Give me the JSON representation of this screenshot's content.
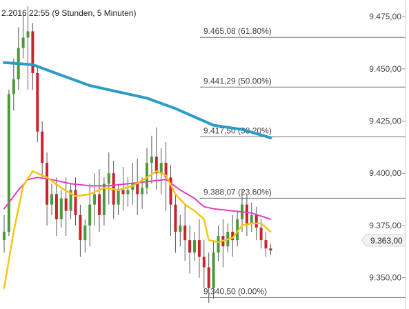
{
  "chart_data": {
    "type": "candlestick",
    "title": "2.2016 22:55 (9 Stunden, 5 Minuten)",
    "ylim": [
      9335,
      9483
    ],
    "y_ticks": [
      {
        "value": 9475,
        "label": "9.475,00"
      },
      {
        "value": 9450,
        "label": "9.450,00"
      },
      {
        "value": 9425,
        "label": "9.425,00"
      },
      {
        "value": 9400,
        "label": "9.400,00"
      },
      {
        "value": 9375,
        "label": "9.375,00"
      },
      {
        "value": 9350,
        "label": "9.350,00"
      }
    ],
    "last_price": {
      "value": 9363,
      "label": "9.363,00"
    },
    "fibonacci": [
      {
        "value": 9465.08,
        "label": "9.465,08 (61.80%)"
      },
      {
        "value": 9441.29,
        "label": "9.441,29 (50.00%)"
      },
      {
        "value": 9417.5,
        "label": "9.417,50 (38.20%)"
      },
      {
        "value": 9388.07,
        "label": "9.388,07 (23.60%)"
      },
      {
        "value": 9340.5,
        "label": "9.340,50 (0.00%)"
      }
    ],
    "candles": [
      [
        9368,
        9380,
        9372,
        9362
      ],
      [
        9372,
        9440,
        9438,
        9370
      ],
      [
        9438,
        9455,
        9445,
        9430
      ],
      [
        9445,
        9470,
        9460,
        9440
      ],
      [
        9460,
        9476,
        9465,
        9455
      ],
      [
        9465,
        9480,
        9468,
        9440
      ],
      [
        9468,
        9472,
        9448,
        9440
      ],
      [
        9448,
        9452,
        9420,
        9415
      ],
      [
        9420,
        9425,
        9405,
        9398
      ],
      [
        9405,
        9410,
        9385,
        9375
      ],
      [
        9385,
        9395,
        9390,
        9380
      ],
      [
        9390,
        9398,
        9378,
        9370
      ],
      [
        9378,
        9392,
        9388,
        9374
      ],
      [
        9388,
        9398,
        9382,
        9370
      ],
      [
        9382,
        9395,
        9392,
        9378
      ],
      [
        9392,
        9398,
        9380,
        9375
      ],
      [
        9380,
        9385,
        9368,
        9360
      ],
      [
        9368,
        9378,
        9375,
        9362
      ],
      [
        9375,
        9395,
        9385,
        9365
      ],
      [
        9385,
        9400,
        9390,
        9375
      ],
      [
        9390,
        9402,
        9380,
        9372
      ],
      [
        9380,
        9398,
        9395,
        9375
      ],
      [
        9395,
        9410,
        9400,
        9385
      ],
      [
        9400,
        9406,
        9385,
        9378
      ],
      [
        9385,
        9395,
        9392,
        9380
      ],
      [
        9392,
        9403,
        9390,
        9382
      ],
      [
        9390,
        9398,
        9392,
        9384
      ],
      [
        9392,
        9405,
        9395,
        9385
      ],
      [
        9395,
        9407,
        9390,
        9380
      ],
      [
        9390,
        9398,
        9393,
        9383
      ],
      [
        9393,
        9412,
        9405,
        9390
      ],
      [
        9405,
        9418,
        9408,
        9395
      ],
      [
        9408,
        9422,
        9400,
        9392
      ],
      [
        9400,
        9412,
        9405,
        9390
      ],
      [
        9405,
        9415,
        9398,
        9382
      ],
      [
        9398,
        9404,
        9385,
        9370
      ],
      [
        9385,
        9390,
        9372,
        9362
      ],
      [
        9372,
        9380,
        9375,
        9365
      ],
      [
        9375,
        9385,
        9368,
        9358
      ],
      [
        9368,
        9375,
        9362,
        9352
      ],
      [
        9362,
        9372,
        9368,
        9358
      ],
      [
        9368,
        9378,
        9360,
        9350
      ],
      [
        9360,
        9368,
        9355,
        9345
      ],
      [
        9355,
        9362,
        9345,
        9338
      ],
      [
        9345,
        9368,
        9362,
        9340
      ],
      [
        9362,
        9375,
        9370,
        9358
      ],
      [
        9370,
        9378,
        9365,
        9355
      ],
      [
        9365,
        9376,
        9372,
        9362
      ],
      [
        9372,
        9380,
        9368,
        9360
      ],
      [
        9368,
        9382,
        9378,
        9365
      ],
      [
        9378,
        9392,
        9385,
        9372
      ],
      [
        9385,
        9390,
        9376,
        9370
      ],
      [
        9376,
        9386,
        9380,
        9372
      ],
      [
        9380,
        9384,
        9374,
        9368
      ],
      [
        9374,
        9378,
        9368,
        9364
      ],
      [
        9368,
        9372,
        9364,
        9360
      ],
      [
        9364,
        9366,
        9363,
        9361
      ]
    ],
    "series": [
      {
        "name": "",
        "color": "#2b9bc7",
        "values": [
          [
            0,
            9453
          ],
          [
            6,
            9452
          ],
          [
            12,
            9447
          ],
          [
            18,
            9442
          ],
          [
            24,
            9439
          ],
          [
            30,
            9436
          ],
          [
            36,
            9431
          ],
          [
            40,
            9427
          ],
          [
            44,
            9423
          ],
          [
            50,
            9421
          ],
          [
            56,
            9417
          ]
        ]
      },
      {
        "name": "",
        "color": "#e838c8",
        "values": [
          [
            0,
            9383
          ],
          [
            3,
            9392
          ],
          [
            5,
            9397
          ],
          [
            7,
            9398
          ],
          [
            10,
            9397
          ],
          [
            14,
            9395
          ],
          [
            18,
            9394
          ],
          [
            22,
            9394
          ],
          [
            26,
            9395
          ],
          [
            30,
            9396
          ],
          [
            34,
            9397
          ],
          [
            37,
            9392
          ],
          [
            40,
            9388
          ],
          [
            42,
            9384
          ],
          [
            44,
            9383
          ],
          [
            48,
            9382
          ],
          [
            52,
            9381
          ],
          [
            56,
            9378
          ]
        ]
      },
      {
        "name": "",
        "color": "#f5c518",
        "values": [
          [
            0,
            9345
          ],
          [
            2,
            9372
          ],
          [
            4,
            9394
          ],
          [
            6,
            9401
          ],
          [
            9,
            9398
          ],
          [
            12,
            9393
          ],
          [
            15,
            9389
          ],
          [
            18,
            9390
          ],
          [
            21,
            9393
          ],
          [
            24,
            9392
          ],
          [
            27,
            9394
          ],
          [
            30,
            9398
          ],
          [
            32,
            9401
          ],
          [
            34,
            9399
          ],
          [
            36,
            9390
          ],
          [
            38,
            9385
          ],
          [
            40,
            9382
          ],
          [
            42,
            9378
          ],
          [
            43,
            9368
          ],
          [
            45,
            9367
          ],
          [
            48,
            9369
          ],
          [
            50,
            9375
          ],
          [
            52,
            9376
          ],
          [
            54,
            9376
          ],
          [
            56,
            9372
          ]
        ]
      }
    ],
    "up_color": "#4a9a3a",
    "down_color": "#c8242c"
  }
}
